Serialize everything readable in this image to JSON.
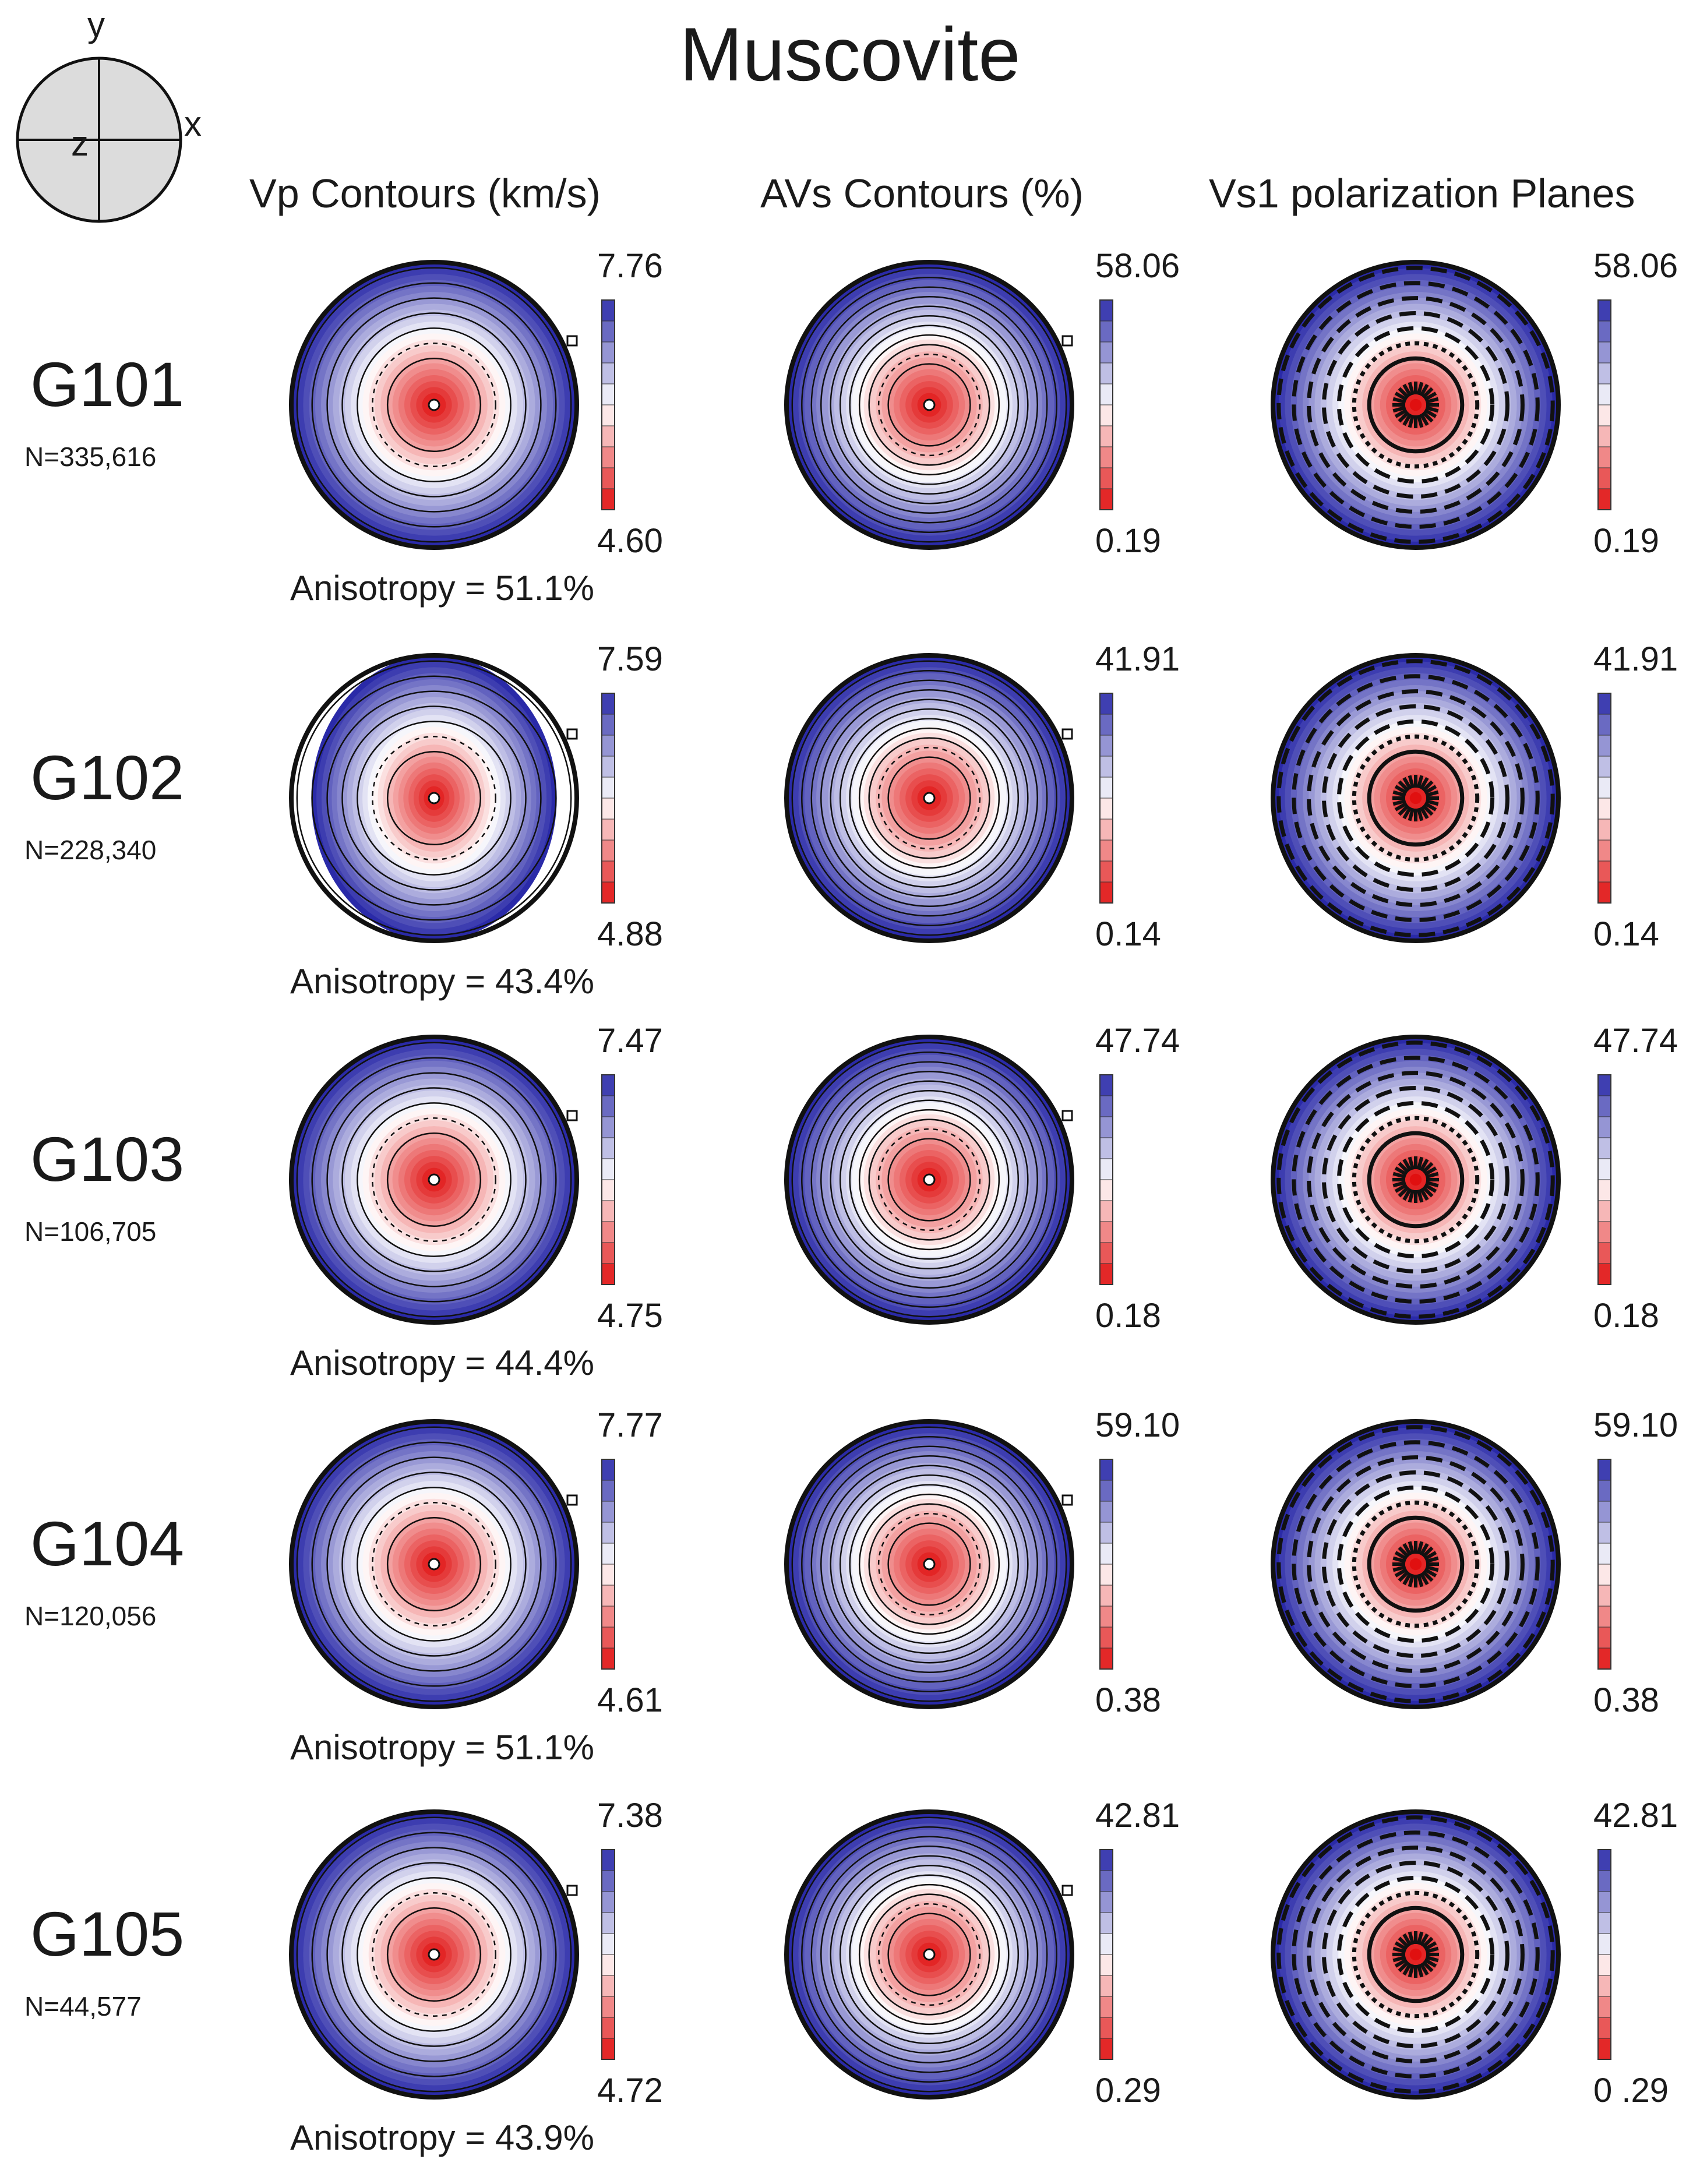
{
  "title": "Muscovite",
  "axis_key": {
    "y": "y",
    "x": "x",
    "z": "z"
  },
  "columns": [
    {
      "label": "Vp  Contours (km/s)"
    },
    {
      "label": "AVs Contours (%)"
    },
    {
      "label": "Vs1 polarization Planes"
    }
  ],
  "samples": [
    {
      "name": "G101",
      "n": "N=335,616",
      "anisotropy": "Anisotropy = 51.1%",
      "vp": {
        "max": "7.76",
        "min": "4.60"
      },
      "avs": {
        "max": "58.06",
        "min": "0.19"
      },
      "vs1": {
        "max": "58.06",
        "min": "0.19"
      }
    },
    {
      "name": "G102",
      "n": "N=228,340",
      "anisotropy": "Anisotropy = 43.4%",
      "vp": {
        "max": "7.59",
        "min": "4.88"
      },
      "avs": {
        "max": "41.91",
        "min": "0.14"
      },
      "vs1": {
        "max": "41.91",
        "min": "0.14"
      }
    },
    {
      "name": "G103",
      "n": "N=106,705",
      "anisotropy": "Anisotropy = 44.4%",
      "vp": {
        "max": "7.47",
        "min": "4.75"
      },
      "avs": {
        "max": "47.74",
        "min": "0.18"
      },
      "vs1": {
        "max": "47.74",
        "min": "0.18"
      }
    },
    {
      "name": "G104",
      "n": "N=120,056",
      "anisotropy": "Anisotropy = 51.1%",
      "vp": {
        "max": "7.77",
        "min": "4.61"
      },
      "avs": {
        "max": "59.10",
        "min": "0.38"
      },
      "vs1": {
        "max": "59.10",
        "min": "0.38"
      }
    },
    {
      "name": "G105",
      "n": "N=44,577",
      "anisotropy": "Anisotropy = 43.9%",
      "vp": {
        "max": "7.38",
        "min": "4.72"
      },
      "avs": {
        "max": "42.81",
        "min": "0.29"
      },
      "vs1": {
        "max": "42.81",
        "min": "0 .29"
      }
    }
  ],
  "colors": {
    "high": "#2a2aa8",
    "mid": "#ffffff",
    "low": "#e01010",
    "ink": "#111111"
  }
}
